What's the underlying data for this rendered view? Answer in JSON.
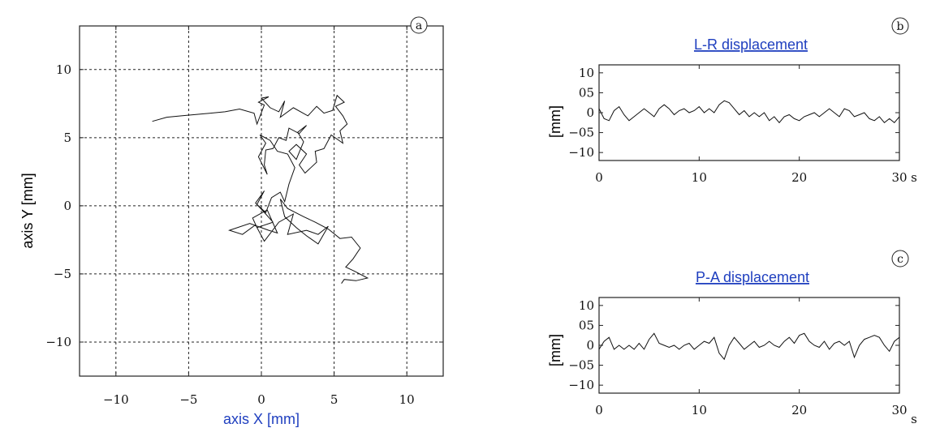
{
  "chart_data": [
    {
      "id": "a",
      "type": "line",
      "panel_label": "a",
      "xlabel": "axis X [mm]",
      "ylabel": "axis Y [mm]",
      "xlim": [
        -12.5,
        12.5
      ],
      "ylim": [
        -12.5,
        13.2
      ],
      "xticks": [
        -10,
        -5,
        0,
        5,
        10
      ],
      "xtick_labels": [
        "−10",
        "−5",
        "0",
        "5",
        "10"
      ],
      "yticks": [
        10,
        5,
        0,
        -5,
        -10
      ],
      "ytick_labels": [
        "10",
        "5",
        "0",
        "−5",
        "−10"
      ],
      "grid": true,
      "series": [
        {
          "x": [
            -7.5,
            -6.5,
            -5.5,
            -4.5,
            -3.5,
            -2.5,
            -1.5,
            -0.5,
            -0.3,
            0.2,
            -0.2,
            0.5,
            0.0,
            0.6,
            1.2,
            1.6,
            1.3,
            2.2,
            3.2,
            3.8,
            4.3,
            4.9,
            5.2,
            5.7,
            5.1,
            5.6,
            5.9,
            5.4,
            5.6,
            4.8,
            4.3,
            3.7,
            3.8,
            3.0,
            2.6,
            3.1,
            2.4,
            1.9,
            2.4,
            2.9,
            2.5,
            3.1,
            2.6,
            1.9,
            1.7,
            1.2,
            0.8,
            0.3,
            0.2,
            0.4,
            -0.2,
            0.3,
            -0.1,
            0.6,
            1.1,
            1.8,
            2.3,
            1.9,
            1.6,
            1.3,
            0.7,
            0.3,
            -0.3,
            0.2,
            -0.4,
            0.3,
            0.8,
            -0.3,
            -0.6,
            0.4,
            1.1,
            0.5,
            -0.8,
            -2.2,
            -1.3,
            -0.4,
            0.2,
            1.2,
            2.2,
            1.8,
            3.1,
            3.9,
            4.6,
            3.9,
            3.1,
            2.4,
            1.6,
            1.3,
            1.8,
            2.9,
            3.7,
            4.6,
            5.4,
            6.2,
            6.8,
            6.3,
            5.8,
            6.4,
            7.3,
            6.5,
            5.7,
            5.5
          ],
          "y": [
            6.2,
            6.5,
            6.6,
            6.7,
            6.8,
            6.9,
            7.1,
            6.8,
            6.0,
            7.4,
            7.6,
            8.0,
            7.9,
            7.2,
            6.9,
            7.7,
            6.5,
            7.2,
            6.6,
            7.3,
            6.8,
            7.0,
            8.1,
            7.6,
            7.3,
            6.6,
            6.0,
            5.5,
            4.6,
            5.2,
            4.2,
            4.0,
            3.2,
            2.4,
            3.0,
            3.8,
            4.5,
            4.0,
            3.4,
            4.7,
            5.4,
            5.9,
            5.3,
            5.7,
            4.8,
            5.0,
            4.2,
            4.1,
            3.0,
            2.3,
            3.6,
            4.6,
            5.2,
            4.8,
            4.0,
            3.8,
            2.8,
            1.6,
            0.3,
            1.0,
            0.6,
            -0.5,
            0.1,
            1.1,
            0.2,
            -0.6,
            -1.2,
            -1.6,
            -0.9,
            -0.3,
            -2.0,
            -1.8,
            -1.3,
            -1.8,
            -2.1,
            -1.4,
            -2.6,
            -1.2,
            -0.6,
            -2.1,
            -1.8,
            -2.1,
            -1.5,
            -2.8,
            -2.2,
            -1.6,
            -0.8,
            0.5,
            -0.2,
            -0.8,
            -1.2,
            -1.7,
            -2.4,
            -2.3,
            -3.1,
            -3.9,
            -4.5,
            -4.8,
            -5.3,
            -5.5,
            -5.4,
            -5.7
          ]
        }
      ]
    },
    {
      "id": "b",
      "type": "line",
      "panel_label": "b",
      "title": "L-R displacement",
      "ylabel": "[mm]",
      "xlim": [
        0,
        30
      ],
      "ylim": [
        -12,
        12
      ],
      "xticks": [
        0,
        10,
        20,
        30
      ],
      "xtick_labels": [
        "0",
        "10",
        "20",
        "30"
      ],
      "x_unit": "s",
      "yticks": [
        10,
        5,
        0,
        -5,
        -10
      ],
      "ytick_labels": [
        "10",
        "05",
        "0",
        "−05",
        "−10"
      ],
      "grid": false,
      "series": [
        {
          "x": [
            0,
            0.5,
            1,
            1.5,
            2,
            2.5,
            3,
            3.5,
            4,
            4.5,
            5,
            5.5,
            6,
            6.5,
            7,
            7.5,
            8,
            8.5,
            9,
            9.5,
            10,
            10.5,
            11,
            11.5,
            12,
            12.5,
            13,
            13.5,
            14,
            14.5,
            15,
            15.5,
            16,
            16.5,
            17,
            17.5,
            18,
            18.5,
            19,
            19.5,
            20,
            20.5,
            21,
            21.5,
            22,
            22.5,
            23,
            23.5,
            24,
            24.5,
            25,
            25.5,
            26,
            26.5,
            27,
            27.5,
            28,
            28.5,
            29,
            29.5,
            30
          ],
          "y": [
            1.0,
            -1.5,
            -2.0,
            0.5,
            1.5,
            -0.5,
            -2.0,
            -1.0,
            0.0,
            1.0,
            0.0,
            -1.0,
            1.0,
            2.0,
            1.0,
            -0.5,
            0.5,
            1.0,
            0.0,
            0.5,
            1.5,
            0.0,
            1.0,
            0.0,
            2.0,
            3.0,
            2.5,
            1.0,
            -0.5,
            0.5,
            -1.0,
            0.0,
            -1.0,
            0.0,
            -2.0,
            -1.0,
            -2.5,
            -1.0,
            -0.5,
            -1.5,
            -2.0,
            -1.0,
            -0.5,
            0.0,
            -1.0,
            0.0,
            1.0,
            0.0,
            -1.0,
            1.0,
            0.5,
            -1.0,
            -0.5,
            0.0,
            -1.5,
            -2.0,
            -1.0,
            -2.5,
            -1.5,
            -2.5,
            -1.0
          ]
        }
      ]
    },
    {
      "id": "c",
      "type": "line",
      "panel_label": "c",
      "title": "P-A displacement",
      "ylabel": "[mm]",
      "xlim": [
        0,
        30
      ],
      "ylim": [
        -12,
        12
      ],
      "xticks": [
        0,
        10,
        20,
        30
      ],
      "xtick_labels": [
        "0",
        "10",
        "20",
        "30"
      ],
      "x_unit": "s",
      "yticks": [
        10,
        5,
        0,
        -5,
        -10
      ],
      "ytick_labels": [
        "10",
        "05",
        "0",
        "−05",
        "−10"
      ],
      "grid": false,
      "series": [
        {
          "x": [
            0,
            0.5,
            1,
            1.5,
            2,
            2.5,
            3,
            3.5,
            4,
            4.5,
            5,
            5.5,
            6,
            6.5,
            7,
            7.5,
            8,
            8.5,
            9,
            9.5,
            10,
            10.5,
            11,
            11.5,
            12,
            12.5,
            13,
            13.5,
            14,
            14.5,
            15,
            15.5,
            16,
            16.5,
            17,
            17.5,
            18,
            18.5,
            19,
            19.5,
            20,
            20.5,
            21,
            21.5,
            22,
            22.5,
            23,
            23.5,
            24,
            24.5,
            25,
            25.5,
            26,
            26.5,
            27,
            27.5,
            28,
            28.5,
            29,
            29.5,
            30
          ],
          "y": [
            -1.0,
            1.0,
            2.0,
            -1.0,
            0.0,
            -1.0,
            0.0,
            -1.0,
            0.5,
            -1.0,
            1.5,
            3.0,
            0.5,
            0.0,
            -0.5,
            0.0,
            -1.0,
            0.0,
            0.5,
            -1.0,
            0.0,
            1.0,
            0.5,
            2.0,
            -2.0,
            -3.5,
            0.0,
            2.0,
            0.5,
            -1.0,
            0.0,
            1.0,
            -0.5,
            0.0,
            1.0,
            0.0,
            -0.5,
            1.0,
            2.0,
            0.5,
            2.5,
            3.0,
            1.0,
            0.0,
            -0.5,
            1.0,
            -1.0,
            0.5,
            1.0,
            0.0,
            1.0,
            -3.0,
            0.0,
            1.5,
            2.0,
            2.5,
            2.0,
            0.0,
            -1.5,
            1.0,
            2.0
          ]
        }
      ]
    }
  ]
}
